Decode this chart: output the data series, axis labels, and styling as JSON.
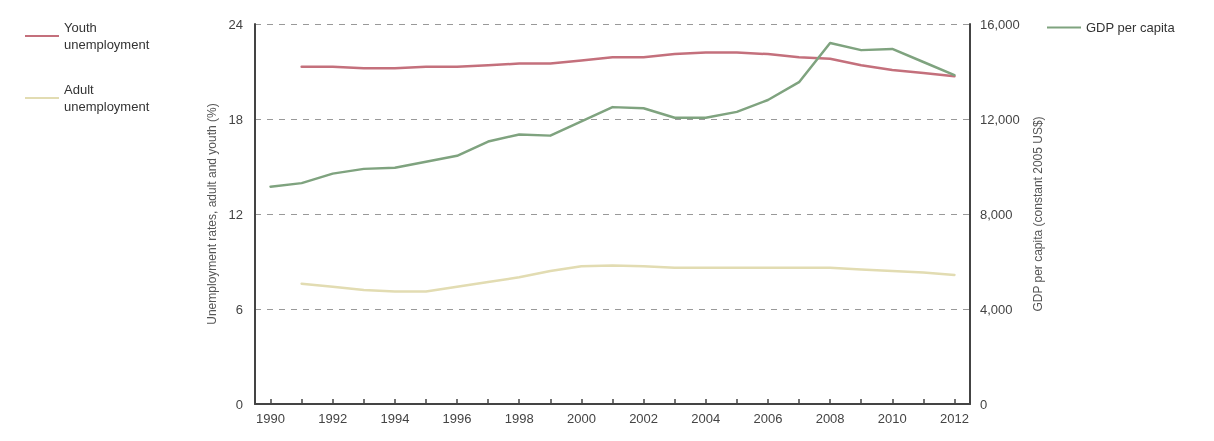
{
  "chart_data": {
    "type": "line",
    "ylabel": "Unemployment rates, adult and youth (%)",
    "y2label": "GDP per capita (constant 2005 US$)",
    "x": [
      1990,
      1991,
      1992,
      1993,
      1994,
      1995,
      1996,
      1997,
      1998,
      1999,
      2000,
      2001,
      2002,
      2003,
      2004,
      2005,
      2006,
      2007,
      2008,
      2009,
      2010,
      2011,
      2012
    ],
    "series": [
      {
        "name": "Youth unemployment",
        "color": "#c4707c",
        "values": [
          null,
          21.3,
          21.3,
          21.2,
          21.2,
          21.3,
          21.3,
          21.4,
          21.5,
          21.5,
          21.7,
          21.9,
          21.9,
          22.1,
          22.2,
          22.2,
          22.1,
          21.9,
          21.8,
          21.4,
          21.1,
          20.9,
          20.7
        ]
      },
      {
        "name": "Adult unemployment",
        "color": "#e2dcb2",
        "values": [
          null,
          7.6,
          7.4,
          7.2,
          7.1,
          7.1,
          7.4,
          7.7,
          8.0,
          8.4,
          8.7,
          8.75,
          8.7,
          8.6,
          8.6,
          8.6,
          8.6,
          8.6,
          8.6,
          8.5,
          8.4,
          8.3,
          8.15
        ]
      },
      {
        "name": "GDP per capita",
        "color": "#7fa37f",
        "axis": "y2",
        "values": [
          9150,
          9300,
          9700,
          9900,
          9950,
          10200,
          10450,
          11050,
          11350,
          11300,
          11900,
          12500,
          12450,
          12050,
          12050,
          12300,
          12800,
          13550,
          15200,
          14900,
          14950,
          14400,
          13850
        ]
      }
    ],
    "xlim": [
      1989.5,
      2012.5
    ],
    "xticks": [
      1990,
      {
        "value": 1991,
        "label": null
      },
      1992,
      {
        "value": 1993,
        "label": null
      },
      1994,
      {
        "value": 1995,
        "label": null
      },
      1996,
      {
        "value": 1997,
        "label": null
      },
      1998,
      {
        "value": 1999,
        "label": null
      },
      2000,
      {
        "value": 2001,
        "label": null
      },
      2002,
      {
        "value": 2003,
        "label": null
      },
      2004,
      {
        "value": 2005,
        "label": null
      },
      2006,
      {
        "value": 2007,
        "label": null
      },
      2008,
      {
        "value": 2009,
        "label": null
      },
      2010,
      {
        "value": 2011,
        "label": null
      },
      2012
    ],
    "ylim": [
      0,
      24
    ],
    "yticks": [
      0,
      6,
      12,
      18,
      24
    ],
    "y2lim": [
      0,
      16000
    ],
    "y2ticks": [
      {
        "value": 0,
        "label": "0"
      },
      {
        "value": 4000,
        "label": "4,000"
      },
      {
        "value": 8000,
        "label": "8,000"
      },
      {
        "value": 12000,
        "label": "12,000"
      },
      {
        "value": 16000,
        "label": "16,000"
      }
    ],
    "grid": "y",
    "legend": "left",
    "marker": "none",
    "line_style": "solid"
  }
}
